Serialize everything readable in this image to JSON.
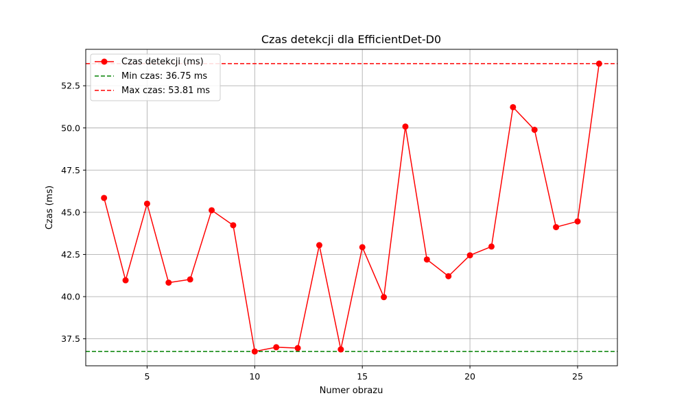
{
  "chart_data": {
    "type": "line",
    "title": "Czas detekcji dla EfficientDet-D0",
    "xlabel": "Numer obrazu",
    "ylabel": "Czas (ms)",
    "xlim": [
      2.15,
      26.85
    ],
    "ylim": [
      35.9,
      54.66
    ],
    "xticks": [
      5,
      10,
      15,
      20,
      25
    ],
    "yticks": [
      37.5,
      40.0,
      42.5,
      45.0,
      47.5,
      50.0,
      52.5
    ],
    "ytick_labels": [
      "37.5",
      "40.0",
      "42.5",
      "45.0",
      "47.5",
      "50.0",
      "52.5"
    ],
    "grid": true,
    "legend_position": "top-left",
    "series": [
      {
        "name": "Czas detekcji (ms)",
        "color": "#ff0000",
        "marker": "circle",
        "x": [
          3,
          4,
          5,
          6,
          7,
          8,
          9,
          10,
          11,
          12,
          13,
          14,
          15,
          16,
          17,
          18,
          19,
          20,
          21,
          22,
          23,
          24,
          25,
          26
        ],
        "y": [
          45.85,
          40.97,
          45.51,
          40.83,
          41.02,
          45.12,
          44.23,
          36.75,
          37.0,
          36.95,
          43.05,
          36.87,
          42.93,
          39.97,
          50.08,
          42.2,
          41.21,
          42.45,
          42.97,
          51.23,
          49.89,
          44.12,
          44.46,
          53.81
        ]
      }
    ],
    "reference_lines": [
      {
        "name": "Min czas: 36.75 ms",
        "value": 36.75,
        "color": "#008000",
        "style": "dashed"
      },
      {
        "name": "Max czas: 53.81 ms",
        "value": 53.81,
        "color": "#ff0000",
        "style": "dashed"
      }
    ]
  }
}
